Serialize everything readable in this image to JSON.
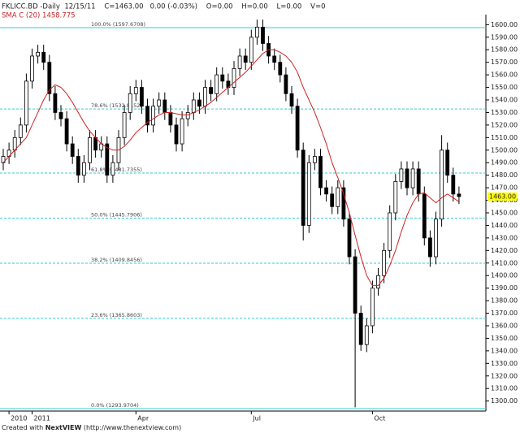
{
  "chart_data": {
    "type": "candlestick",
    "title": "FKLICC.BD -Daily  12/15/11    C=1463.00   0.00 (-0.03%)    O=0.00    H=0.00    L=0.00    V=0",
    "indicator_label": "SMA C (20) 1458.775",
    "footer_prefix": "Created with",
    "footer_brand": "NextVIEW",
    "footer_url": "(http://www.thenextview.com)",
    "categories": [
      null,
      "2010",
      null,
      null,
      null,
      "2011",
      null,
      null,
      null,
      null,
      null,
      null,
      null,
      null,
      null,
      null,
      null,
      null,
      null,
      null,
      null,
      null,
      null,
      "Apr",
      null,
      null,
      null,
      null,
      null,
      null,
      null,
      null,
      null,
      null,
      null,
      null,
      null,
      null,
      null,
      null,
      null,
      null,
      null,
      "Jul",
      null,
      null,
      null,
      null,
      null,
      null,
      null,
      null,
      null,
      null,
      null,
      null,
      null,
      null,
      null,
      null,
      null,
      null,
      null,
      null,
      "Oct",
      null,
      null,
      null,
      null,
      null,
      null,
      null,
      null,
      null,
      null,
      null,
      null,
      null,
      null,
      null
    ],
    "open": [
      1490,
      1495,
      1500,
      1510,
      1520,
      1555,
      1575,
      1578,
      1570,
      1545,
      1530,
      1525,
      1505,
      1495,
      1480,
      1490,
      1510,
      1500,
      1505,
      1480,
      1490,
      1510,
      1530,
      1545,
      1550,
      1535,
      1520,
      1535,
      1540,
      1530,
      1520,
      1505,
      1525,
      1530,
      1540,
      1535,
      1550,
      1545,
      1560,
      1555,
      1550,
      1565,
      1575,
      1570,
      1590,
      1598,
      1585,
      1575,
      1570,
      1560,
      1545,
      1535,
      1500,
      1440,
      1490,
      1495,
      1470,
      1465,
      1455,
      1470,
      1445,
      1415,
      1370,
      1345,
      1360,
      1390,
      1400,
      1420,
      1450,
      1475,
      1485,
      1470,
      1485,
      1465,
      1430,
      1415,
      1445,
      1500,
      1480,
      1465
    ],
    "high": [
      1501,
      1506,
      1516,
      1526,
      1561,
      1581,
      1584,
      1584,
      1576,
      1551,
      1536,
      1531,
      1511,
      1501,
      1496,
      1516,
      1516,
      1511,
      1511,
      1496,
      1516,
      1536,
      1551,
      1556,
      1556,
      1541,
      1541,
      1546,
      1546,
      1536,
      1526,
      1531,
      1536,
      1546,
      1546,
      1556,
      1556,
      1566,
      1566,
      1561,
      1571,
      1581,
      1581,
      1596,
      1604,
      1604,
      1591,
      1581,
      1576,
      1566,
      1551,
      1541,
      1506,
      1496,
      1501,
      1501,
      1476,
      1471,
      1476,
      1476,
      1451,
      1421,
      1376,
      1366,
      1396,
      1406,
      1426,
      1456,
      1481,
      1491,
      1491,
      1491,
      1491,
      1471,
      1436,
      1451,
      1512,
      1506,
      1486,
      1471
    ],
    "low": [
      1484,
      1489,
      1494,
      1504,
      1514,
      1549,
      1569,
      1564,
      1539,
      1524,
      1519,
      1499,
      1489,
      1474,
      1474,
      1484,
      1494,
      1494,
      1474,
      1474,
      1484,
      1504,
      1524,
      1539,
      1529,
      1514,
      1514,
      1529,
      1524,
      1514,
      1499,
      1499,
      1519,
      1524,
      1529,
      1529,
      1539,
      1539,
      1549,
      1544,
      1544,
      1559,
      1564,
      1564,
      1584,
      1579,
      1569,
      1564,
      1554,
      1539,
      1529,
      1494,
      1428,
      1434,
      1484,
      1464,
      1459,
      1449,
      1449,
      1439,
      1409,
      1295,
      1340,
      1339,
      1354,
      1384,
      1394,
      1414,
      1444,
      1469,
      1464,
      1464,
      1459,
      1424,
      1407,
      1409,
      1439,
      1474,
      1459,
      1457
    ],
    "close": [
      1495,
      1500,
      1510,
      1520,
      1555,
      1575,
      1578,
      1570,
      1545,
      1530,
      1525,
      1505,
      1495,
      1480,
      1490,
      1510,
      1500,
      1505,
      1480,
      1490,
      1510,
      1530,
      1545,
      1550,
      1535,
      1520,
      1535,
      1540,
      1530,
      1520,
      1505,
      1525,
      1530,
      1540,
      1535,
      1550,
      1545,
      1560,
      1555,
      1550,
      1565,
      1575,
      1570,
      1590,
      1598,
      1585,
      1575,
      1570,
      1560,
      1545,
      1535,
      1500,
      1440,
      1490,
      1495,
      1470,
      1465,
      1455,
      1470,
      1445,
      1415,
      1370,
      1345,
      1360,
      1390,
      1400,
      1420,
      1450,
      1475,
      1485,
      1470,
      1485,
      1465,
      1430,
      1415,
      1445,
      1500,
      1480,
      1465,
      1463
    ],
    "candle_color": "#000000",
    "sma": {
      "color": "#cc2222",
      "values": [
        1490,
        1495,
        1500,
        1505,
        1510,
        1520,
        1530,
        1540,
        1548,
        1552,
        1550,
        1545,
        1538,
        1530,
        1522,
        1515,
        1510,
        1505,
        1502,
        1500,
        1500,
        1503,
        1508,
        1514,
        1518,
        1522,
        1525,
        1528,
        1530,
        1530,
        1529,
        1528,
        1528,
        1530,
        1532,
        1535,
        1538,
        1542,
        1546,
        1550,
        1554,
        1558,
        1562,
        1567,
        1572,
        1577,
        1580,
        1580,
        1578,
        1575,
        1570,
        1562,
        1550,
        1540,
        1530,
        1518,
        1505,
        1490,
        1478,
        1465,
        1450,
        1432,
        1415,
        1400,
        1392,
        1392,
        1398,
        1408,
        1420,
        1435,
        1448,
        1458,
        1465,
        1466,
        1462,
        1458,
        1462,
        1465,
        1462,
        1458.775
      ]
    },
    "fib_color": "#33cccc",
    "fib_levels": [
      {
        "value": 1597.6708,
        "label": "100.0% (1597.6708)"
      },
      {
        "value": 1532.8152,
        "label": "78.6% (1532.8152)"
      },
      {
        "value": 1481.7355,
        "label": "61.8% (1481.7355)"
      },
      {
        "value": 1445.7906,
        "label": "50.0% (1445.7906)"
      },
      {
        "value": 1409.8456,
        "label": "38.2% (1409.8456)"
      },
      {
        "value": 1365.8603,
        "label": "23.6% (1365.8603)"
      },
      {
        "value": 1293.9704,
        "label": "0.0% (1293.9704)"
      }
    ],
    "last_price": {
      "value": 1463,
      "label": "1463.00"
    },
    "ylim": [
      1292,
      1608
    ],
    "yticks": [
      {
        "value": 1300,
        "label": "1300.00"
      },
      {
        "value": 1310,
        "label": "1310.00"
      },
      {
        "value": 1320,
        "label": "1320.00"
      },
      {
        "value": 1330,
        "label": "1330.00"
      },
      {
        "value": 1340,
        "label": "1340.00"
      },
      {
        "value": 1350,
        "label": "1350.00"
      },
      {
        "value": 1360,
        "label": "1360.00"
      },
      {
        "value": 1370,
        "label": "1370.00"
      },
      {
        "value": 1380,
        "label": "1380.00"
      },
      {
        "value": 1390,
        "label": "1390.00"
      },
      {
        "value": 1400,
        "label": "1400.00"
      },
      {
        "value": 1410,
        "label": "1410.00"
      },
      {
        "value": 1420,
        "label": "1420.00"
      },
      {
        "value": 1430,
        "label": "1430.00"
      },
      {
        "value": 1440,
        "label": "1440.00"
      },
      {
        "value": 1450,
        "label": "1450.00"
      },
      {
        "value": 1460,
        "label": "1460.00"
      },
      {
        "value": 1470,
        "label": "1470.00"
      },
      {
        "value": 1480,
        "label": "1480.00"
      },
      {
        "value": 1490,
        "label": "1490.00"
      },
      {
        "value": 1500,
        "label": "1500.00"
      },
      {
        "value": 1510,
        "label": "1510.00"
      },
      {
        "value": 1520,
        "label": "1520.00"
      },
      {
        "value": 1530,
        "label": "1530.00"
      },
      {
        "value": 1540,
        "label": "1540.00"
      },
      {
        "value": 1550,
        "label": "1550.00"
      },
      {
        "value": 1560,
        "label": "1560.00"
      },
      {
        "value": 1570,
        "label": "1570.00"
      },
      {
        "value": 1580,
        "label": "1580.00"
      },
      {
        "value": 1590,
        "label": "1590.00"
      },
      {
        "value": 1600,
        "label": "1600.00"
      }
    ]
  }
}
